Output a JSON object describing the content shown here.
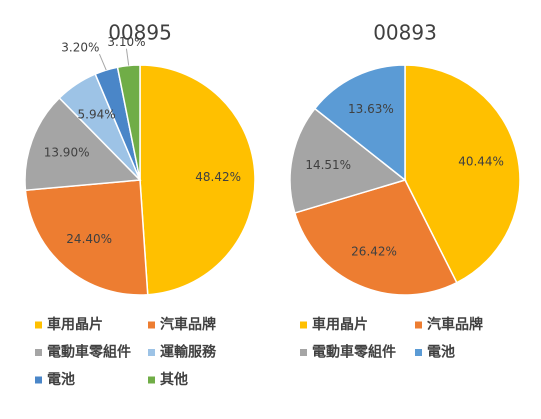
{
  "chart_data": [
    {
      "type": "pie",
      "title": "00895",
      "categories": [
        "車用晶片",
        "汽車品牌",
        "電動車零組件",
        "運輸服務",
        "電池",
        "其他"
      ],
      "values": [
        48.42,
        24.4,
        13.9,
        5.94,
        3.2,
        3.1
      ],
      "value_labels": [
        "48.42%",
        "24.40%",
        "13.90%",
        "5.94%",
        "3.20%",
        "3.10%"
      ],
      "colors": [
        "#ffc000",
        "#ed7d31",
        "#a5a5a5",
        "#9dc3e6",
        "#4a86c8",
        "#70ad47"
      ]
    },
    {
      "type": "pie",
      "title": "00893",
      "categories": [
        "車用晶片",
        "汽車品牌",
        "電動車零組件",
        "電池"
      ],
      "values": [
        40.44,
        26.42,
        14.51,
        13.63
      ],
      "value_labels": [
        "40.44%",
        "26.42%",
        "14.51%",
        "13.63%"
      ],
      "colors": [
        "#ffc000",
        "#ed7d31",
        "#a5a5a5",
        "#5b9bd5"
      ]
    }
  ]
}
